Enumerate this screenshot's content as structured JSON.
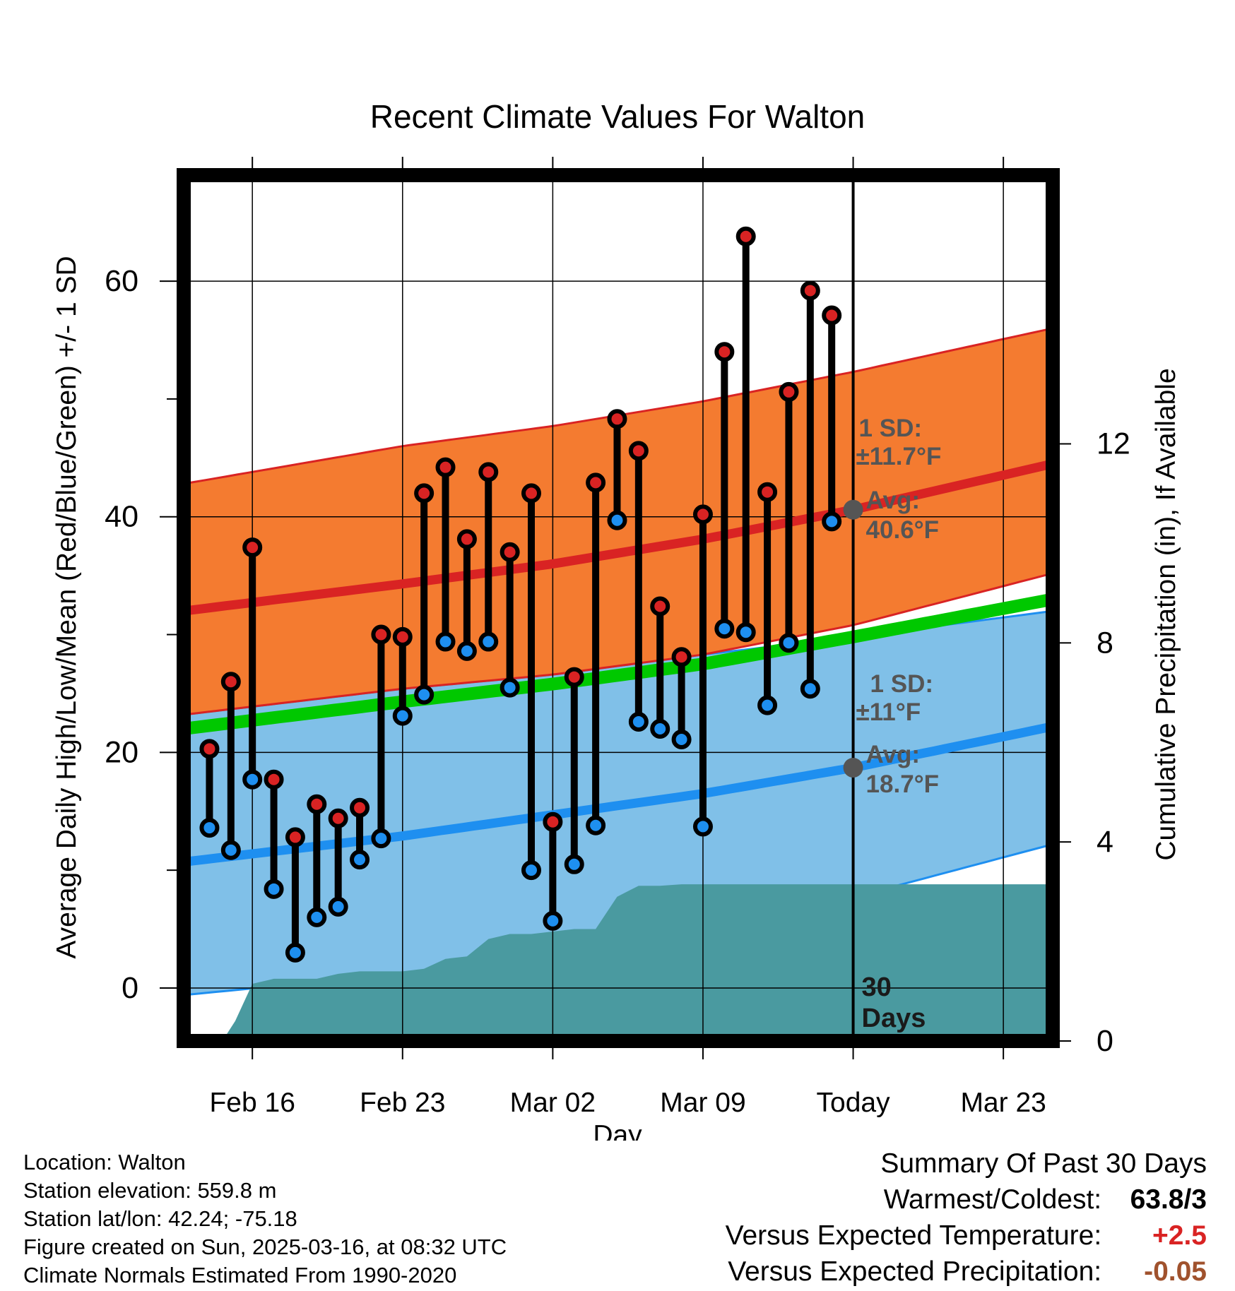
{
  "chart_data": {
    "type": "line",
    "title": "Recent Climate Values For Walton",
    "xlabel": "Day",
    "ylabel_left": "Average Daily High/Low/Mean (Red/Blue/Green) +/- 1 SD",
    "ylabel_right": "Cumulative Precipitation (in), If Available",
    "x_tick_labels": [
      "Feb 16",
      "Feb 23",
      "Mar 02",
      "Mar 09",
      "Today",
      "Mar 23"
    ],
    "x_tick_days": [
      2,
      9,
      16,
      23,
      30,
      37
    ],
    "x_range_days": [
      -1.2,
      39.3
    ],
    "y_left_ticks": [
      0,
      20,
      40,
      60
    ],
    "y_left_range": [
      -4.5,
      69
    ],
    "y_right_ticks": [
      0,
      4,
      8,
      12
    ],
    "y_right_range": [
      0,
      17.4
    ],
    "grid": true,
    "today_day": 30,
    "today_label": "30 Days",
    "normals": {
      "high": {
        "color": "#d92323",
        "band_color": "#f47b30",
        "mean": [
          [
            -1.2,
            32.0
          ],
          [
            9,
            34.3
          ],
          [
            16,
            36.0
          ],
          [
            23,
            38.1
          ],
          [
            30,
            40.6
          ],
          [
            39.3,
            44.5
          ]
        ],
        "upper": [
          [
            -1.2,
            42.8
          ],
          [
            9,
            46.0
          ],
          [
            16,
            47.7
          ],
          [
            23,
            49.8
          ],
          [
            30,
            52.3
          ],
          [
            39.3,
            56.0
          ]
        ],
        "lower": [
          [
            -1.2,
            23.2
          ],
          [
            9,
            25.4
          ],
          [
            16,
            26.6
          ],
          [
            23,
            28.3
          ],
          [
            30,
            30.8
          ],
          [
            39.3,
            35.2
          ]
        ],
        "sd_label": "1 SD:",
        "sd_value": "±11.7°F",
        "avg_label": "Avg:",
        "avg_value": "40.6°F"
      },
      "low": {
        "color": "#1e8ff0",
        "band_color": "#80c0e8",
        "mean": [
          [
            -1.2,
            10.7
          ],
          [
            9,
            12.9
          ],
          [
            16,
            14.7
          ],
          [
            23,
            16.5
          ],
          [
            30,
            18.7
          ],
          [
            39.3,
            22.2
          ]
        ],
        "upper": [
          [
            -1.2,
            23.2
          ],
          [
            9,
            25.4
          ],
          [
            16,
            26.6
          ],
          [
            23,
            28.3
          ],
          [
            30,
            29.8
          ],
          [
            39.3,
            32.0
          ]
        ],
        "lower": [
          [
            -1.2,
            -0.6
          ],
          [
            9,
            1.2
          ],
          [
            16,
            3.0
          ],
          [
            23,
            5.1
          ],
          [
            30,
            7.7
          ],
          [
            39.3,
            12.2
          ]
        ],
        "sd_label": "1 SD:",
        "sd_value": "±11°F",
        "avg_label": "Avg:",
        "avg_value": "18.7°F"
      },
      "mean": {
        "color": "#00c800",
        "values": [
          [
            -1.2,
            22.0
          ],
          [
            9,
            24.3
          ],
          [
            16,
            25.8
          ],
          [
            23,
            27.5
          ],
          [
            30,
            29.8
          ],
          [
            39.3,
            33.0
          ]
        ]
      }
    },
    "series": [
      {
        "name": "High",
        "color": "#d92323",
        "x": [
          0,
          1,
          2,
          3,
          4,
          5,
          6,
          7,
          8,
          9,
          10,
          11,
          12,
          13,
          14,
          15,
          16,
          17,
          18,
          19,
          20,
          21,
          22,
          23,
          24,
          25,
          26,
          27,
          28,
          29
        ],
        "values": [
          20.3,
          26.0,
          37.4,
          17.7,
          12.8,
          15.6,
          14.4,
          15.3,
          30.0,
          29.8,
          42.0,
          44.2,
          38.1,
          43.8,
          37.0,
          42.0,
          14.1,
          26.4,
          42.9,
          48.3,
          45.6,
          32.4,
          28.1,
          40.2,
          54.0,
          63.8,
          42.1,
          50.6,
          59.2,
          57.1
        ]
      },
      {
        "name": "Low",
        "color": "#1e8ff0",
        "x": [
          0,
          1,
          2,
          3,
          4,
          5,
          6,
          7,
          8,
          9,
          10,
          11,
          12,
          13,
          14,
          15,
          16,
          17,
          18,
          19,
          20,
          21,
          22,
          23,
          24,
          25,
          26,
          27,
          28,
          29
        ],
        "values": [
          13.6,
          11.7,
          17.7,
          8.4,
          3.0,
          6.0,
          6.9,
          10.9,
          12.7,
          23.1,
          24.9,
          29.4,
          28.6,
          29.4,
          25.5,
          10.0,
          5.7,
          10.5,
          13.8,
          39.7,
          22.6,
          22.0,
          21.1,
          13.7,
          30.5,
          30.2,
          24.0,
          29.3,
          25.4,
          39.6
        ]
      },
      {
        "name": "Precipitation",
        "color": "#4a9aa0",
        "x": [
          -1.2,
          0.6,
          1.2,
          2.0,
          3.0,
          5.0,
          6.0,
          7.0,
          8.0,
          9.0,
          10.0,
          11.0,
          12.0,
          13.0,
          14.0,
          15.0,
          16.0,
          17.0,
          18.0,
          19.0,
          20.0,
          21.0,
          22.0,
          25.0,
          30.0,
          39.3
        ],
        "values": [
          0,
          0,
          0.4,
          1.15,
          1.25,
          1.25,
          1.35,
          1.4,
          1.4,
          1.4,
          1.45,
          1.65,
          1.7,
          2.05,
          2.15,
          2.15,
          2.2,
          2.25,
          2.25,
          2.9,
          3.12,
          3.12,
          3.15,
          3.15,
          3.15,
          3.15
        ]
      }
    ]
  },
  "footer": {
    "location": "Location: Walton",
    "elevation": "Station elevation: 559.8 m",
    "latlon": "Station lat/lon: 42.24; -75.18",
    "created": "Figure created on Sun, 2025-03-16, at 08:32 UTC",
    "normals_note": "Climate Normals Estimated From 1990-2020"
  },
  "summary": {
    "title": "Summary Of Past 30 Days",
    "warmest_coldest_label": "Warmest/Coldest:",
    "warmest_coldest_value": "63.8/3",
    "temp_label": "Versus Expected Temperature:",
    "temp_value": "+2.5",
    "temp_color": "#d92323",
    "precip_label": "Versus Expected Precipitation:",
    "precip_value": "-0.05",
    "precip_color": "#a0522d"
  }
}
